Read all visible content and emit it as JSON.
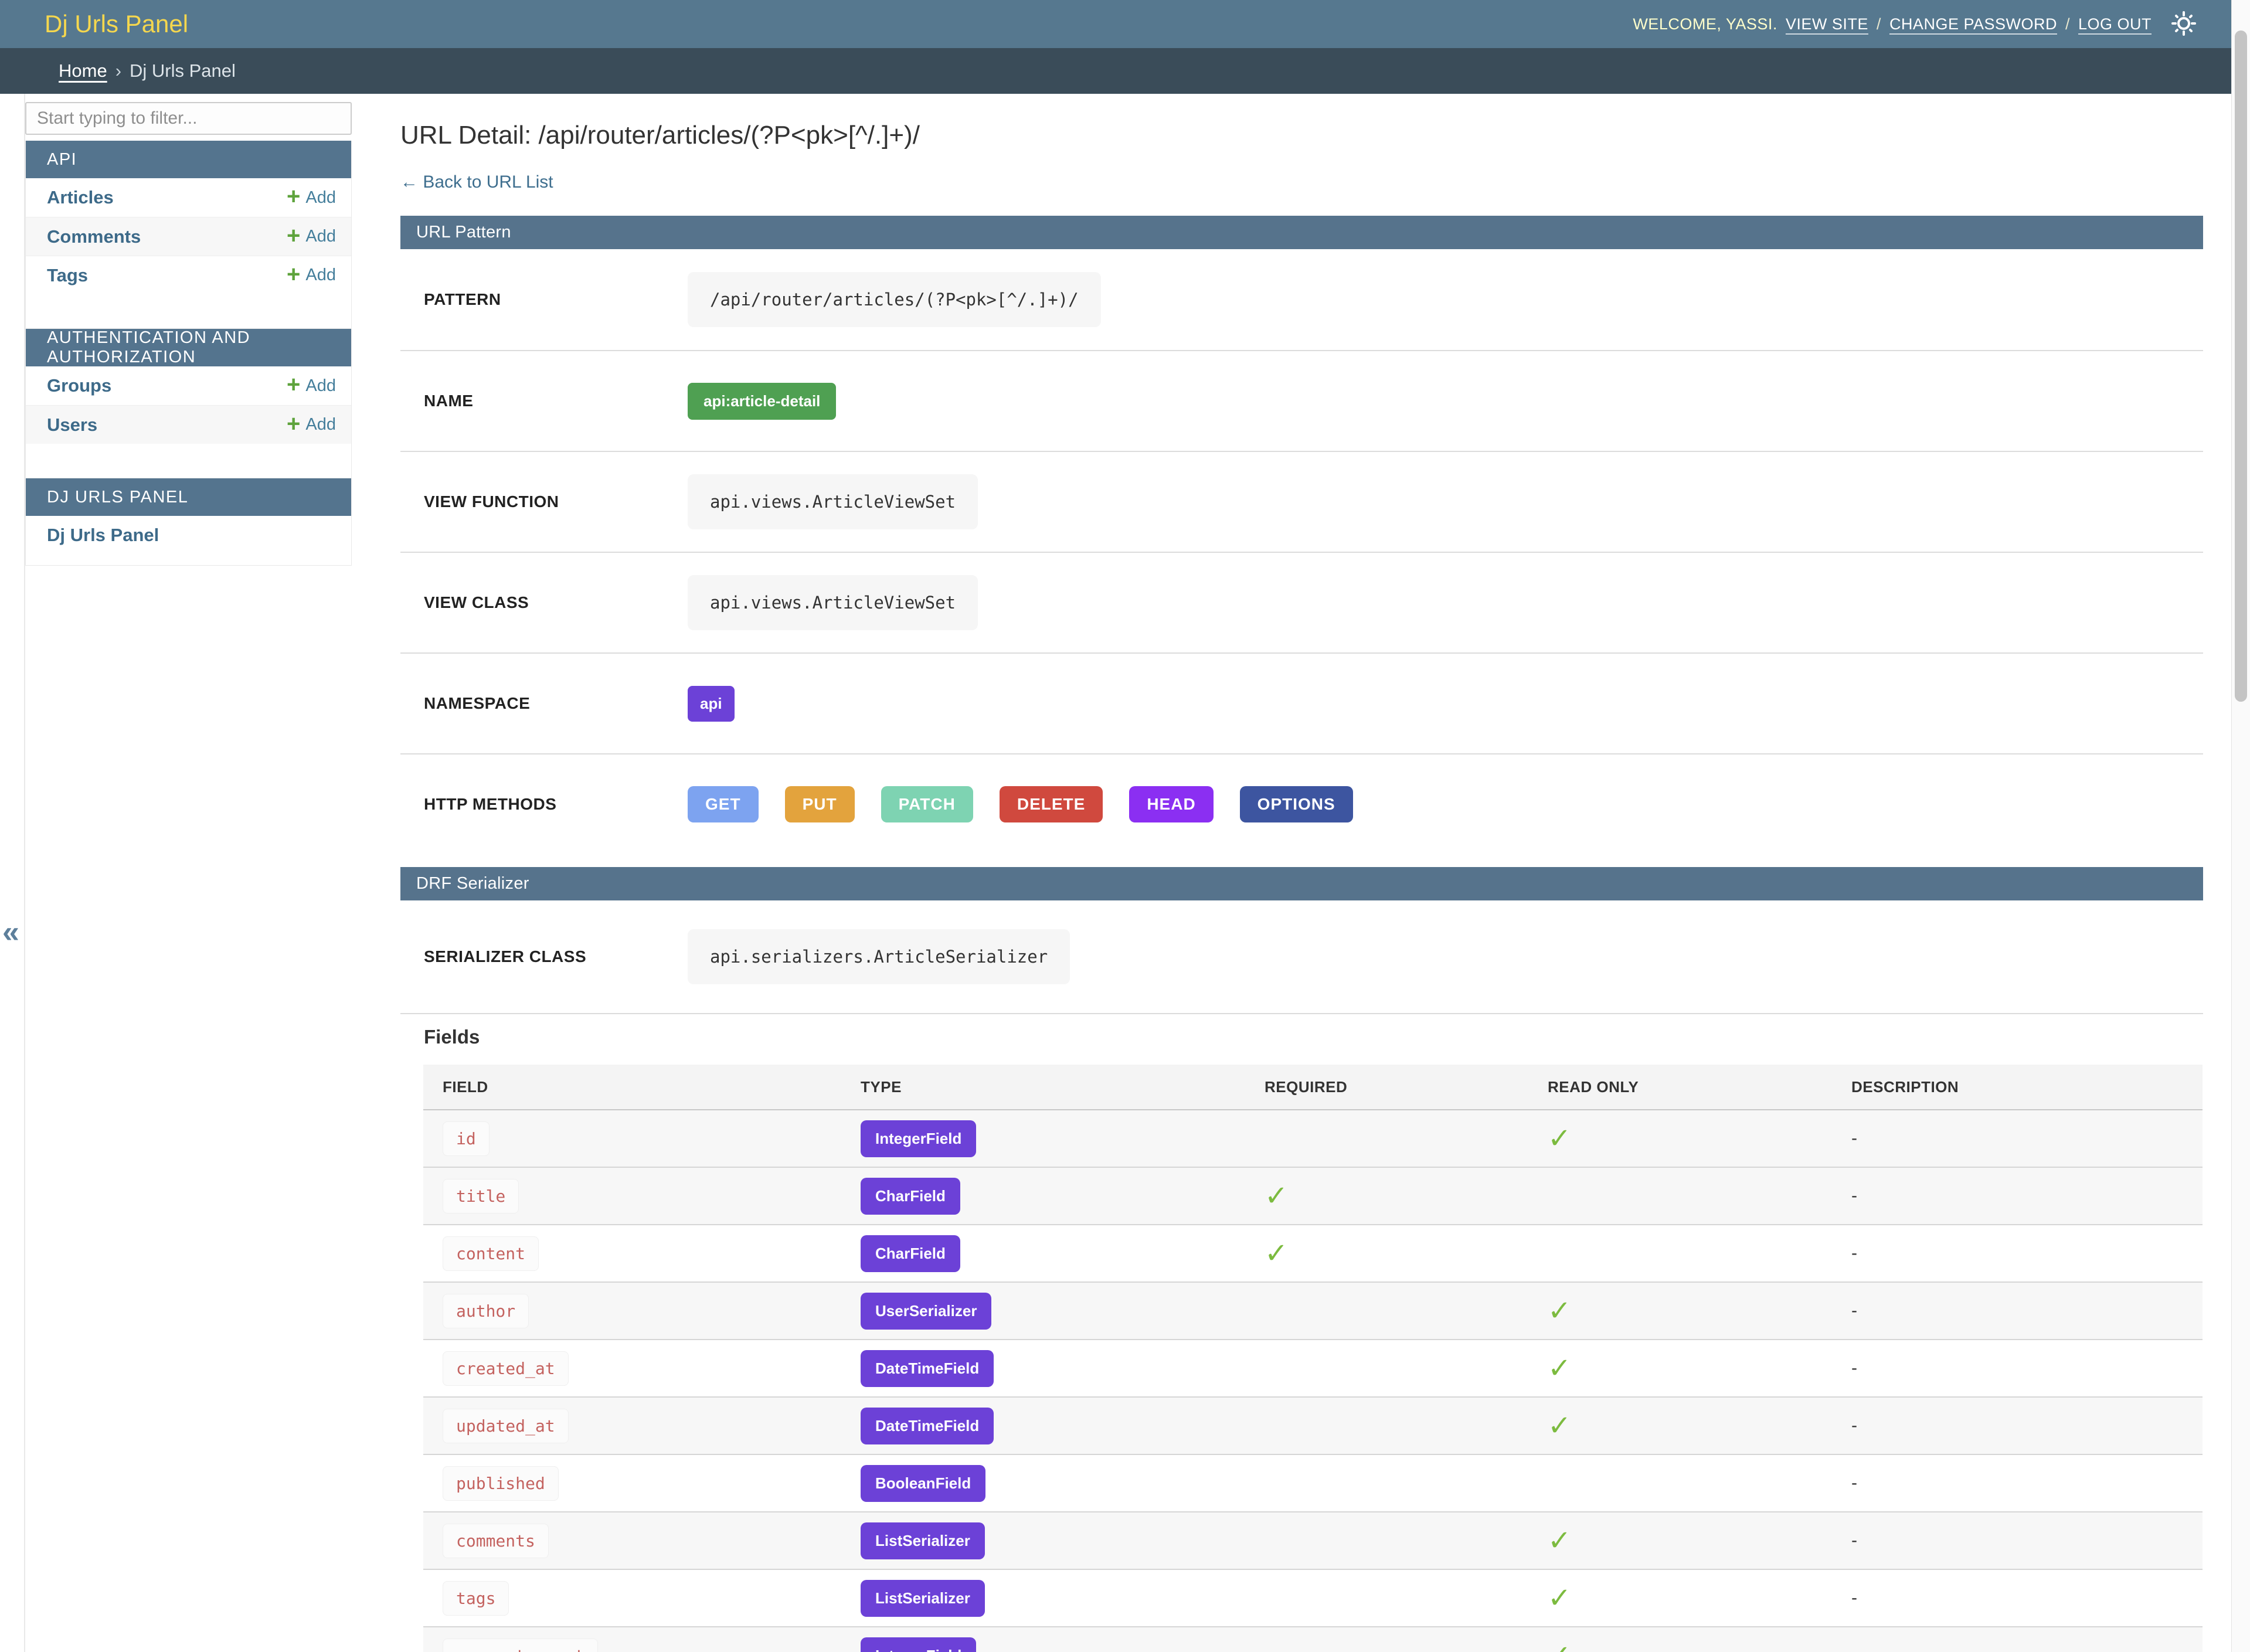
{
  "header": {
    "brand": "Dj Urls Panel",
    "welcome": "WELCOME, YASSI.",
    "view_site": "VIEW SITE",
    "change_password": "CHANGE PASSWORD",
    "log_out": "LOG OUT",
    "link_separator": "/"
  },
  "breadcrumb": {
    "home": "Home",
    "separator": "›",
    "current": "Dj Urls Panel"
  },
  "sidebar": {
    "toggle": "«",
    "filter_placeholder": "Start typing to filter...",
    "plus": "+",
    "add_label": "Add",
    "modules": [
      {
        "title": "API",
        "items": [
          {
            "label": "Articles",
            "add": true
          },
          {
            "label": "Comments",
            "add": true
          },
          {
            "label": "Tags",
            "add": true
          }
        ]
      },
      {
        "title": "AUTHENTICATION AND AUTHORIZATION",
        "items": [
          {
            "label": "Groups",
            "add": true
          },
          {
            "label": "Users",
            "add": true
          }
        ]
      },
      {
        "title": "DJ URLS PANEL",
        "items": [
          {
            "label": "Dj Urls Panel",
            "add": false
          }
        ]
      }
    ]
  },
  "main": {
    "title": "URL Detail: /api/router/articles/(?P<pk>[^/.]+)/",
    "back_link": "← Back to URL List",
    "url_pattern": {
      "caption": "URL Pattern",
      "pattern_label": "PATTERN",
      "pattern_value": "/api/router/articles/(?P<pk>[^/.]+)/",
      "name_label": "NAME",
      "name_value": "api:article-detail",
      "view_function_label": "VIEW FUNCTION",
      "view_function_value": "api.views.ArticleViewSet",
      "view_class_label": "VIEW CLASS",
      "view_class_value": "api.views.ArticleViewSet",
      "namespace_label": "NAMESPACE",
      "namespace_value": "api",
      "http_methods_label": "HTTP METHODS",
      "http_methods": [
        {
          "label": "GET",
          "color": "#7DA3F0"
        },
        {
          "label": "PUT",
          "color": "#E3A33D"
        },
        {
          "label": "PATCH",
          "color": "#7ED3B2"
        },
        {
          "label": "DELETE",
          "color": "#D0493E"
        },
        {
          "label": "HEAD",
          "color": "#8B2FF2"
        },
        {
          "label": "OPTIONS",
          "color": "#3D55A0"
        }
      ]
    },
    "serializer": {
      "caption": "DRF Serializer",
      "class_label": "SERIALIZER CLASS",
      "class_value": "api.serializers.ArticleSerializer",
      "fields_heading": "Fields",
      "table": {
        "headers": [
          "FIELD",
          "TYPE",
          "REQUIRED",
          "READ ONLY",
          "DESCRIPTION"
        ],
        "check_glyph": "✓",
        "type_badge_color": "#6C41D7",
        "rows": [
          {
            "field": "id",
            "type": "IntegerField",
            "required": false,
            "read_only": true,
            "description": "-",
            "shaded": true
          },
          {
            "field": "title",
            "type": "CharField",
            "required": true,
            "read_only": false,
            "description": "-",
            "shaded": true
          },
          {
            "field": "content",
            "type": "CharField",
            "required": true,
            "read_only": false,
            "description": "-",
            "shaded": false
          },
          {
            "field": "author",
            "type": "UserSerializer",
            "required": false,
            "read_only": true,
            "description": "-",
            "shaded": true
          },
          {
            "field": "created_at",
            "type": "DateTimeField",
            "required": false,
            "read_only": true,
            "description": "-",
            "shaded": false
          },
          {
            "field": "updated_at",
            "type": "DateTimeField",
            "required": false,
            "read_only": true,
            "description": "-",
            "shaded": true
          },
          {
            "field": "published",
            "type": "BooleanField",
            "required": false,
            "read_only": false,
            "description": "-",
            "shaded": false
          },
          {
            "field": "comments",
            "type": "ListSerializer",
            "required": false,
            "read_only": true,
            "description": "-",
            "shaded": true
          },
          {
            "field": "tags",
            "type": "ListSerializer",
            "required": false,
            "read_only": true,
            "description": "-",
            "shaded": false
          },
          {
            "field": "comment_count",
            "type": "IntegerField",
            "required": false,
            "read_only": true,
            "description": "-",
            "shaded": true
          }
        ]
      }
    }
  },
  "colors": {
    "header_bg": "#56788F",
    "breadcrumb_bg": "#3A4C59",
    "caption_bg": "#54748E",
    "brand_yellow": "#F5D74E",
    "link_blue": "#3D6A89",
    "add_green": "#5EA33C",
    "name_badge_green": "#4FA052",
    "namespace_badge_purple": "#6C41D7",
    "check_green": "#7CBB3F",
    "field_name_red": "#C4625F"
  }
}
